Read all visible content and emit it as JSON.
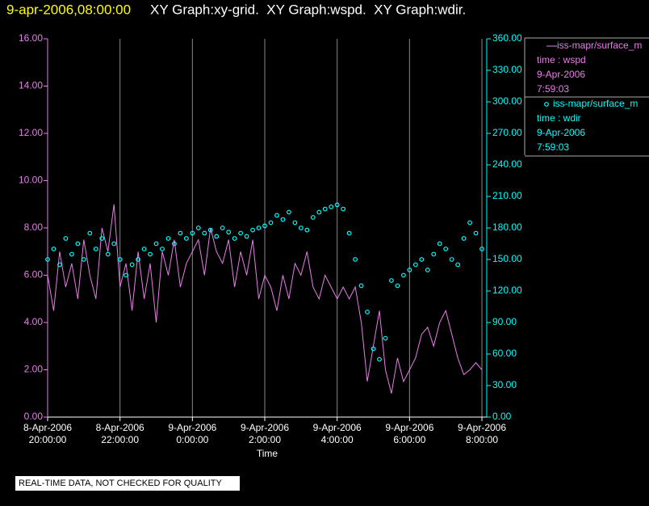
{
  "chart_data": {
    "type": "line",
    "title": "9-apr-2006,08:00:00",
    "subtitle": "XY Graph:xy-grid.  XY Graph:wspd.  XY Graph:wdir.",
    "xlabel": "Time",
    "footnote": "REAL-TIME DATA, NOT CHECKED FOR QUALITY",
    "grid": true,
    "x": [
      "2006-04-08 20:00:00",
      "2006-04-08 20:10:00",
      "2006-04-08 20:20:00",
      "2006-04-08 20:30:00",
      "2006-04-08 20:40:00",
      "2006-04-08 20:50:00",
      "2006-04-08 21:00:00",
      "2006-04-08 21:10:00",
      "2006-04-08 21:20:00",
      "2006-04-08 21:30:00",
      "2006-04-08 21:40:00",
      "2006-04-08 21:50:00",
      "2006-04-08 22:00:00",
      "2006-04-08 22:10:00",
      "2006-04-08 22:20:00",
      "2006-04-08 22:30:00",
      "2006-04-08 22:40:00",
      "2006-04-08 22:50:00",
      "2006-04-08 23:00:00",
      "2006-04-08 23:10:00",
      "2006-04-08 23:20:00",
      "2006-04-08 23:30:00",
      "2006-04-08 23:40:00",
      "2006-04-08 23:50:00",
      "2006-04-09 00:00:00",
      "2006-04-09 00:10:00",
      "2006-04-09 00:20:00",
      "2006-04-09 00:30:00",
      "2006-04-09 00:40:00",
      "2006-04-09 00:50:00",
      "2006-04-09 01:00:00",
      "2006-04-09 01:10:00",
      "2006-04-09 01:20:00",
      "2006-04-09 01:30:00",
      "2006-04-09 01:40:00",
      "2006-04-09 01:50:00",
      "2006-04-09 02:00:00",
      "2006-04-09 02:10:00",
      "2006-04-09 02:20:00",
      "2006-04-09 02:30:00",
      "2006-04-09 02:40:00",
      "2006-04-09 02:50:00",
      "2006-04-09 03:00:00",
      "2006-04-09 03:10:00",
      "2006-04-09 03:20:00",
      "2006-04-09 03:30:00",
      "2006-04-09 03:40:00",
      "2006-04-09 03:50:00",
      "2006-04-09 04:00:00",
      "2006-04-09 04:10:00",
      "2006-04-09 04:20:00",
      "2006-04-09 04:30:00",
      "2006-04-09 04:40:00",
      "2006-04-09 04:50:00",
      "2006-04-09 05:00:00",
      "2006-04-09 05:10:00",
      "2006-04-09 05:20:00",
      "2006-04-09 05:30:00",
      "2006-04-09 05:40:00",
      "2006-04-09 05:50:00",
      "2006-04-09 06:00:00",
      "2006-04-09 06:10:00",
      "2006-04-09 06:20:00",
      "2006-04-09 06:30:00",
      "2006-04-09 06:40:00",
      "2006-04-09 06:50:00",
      "2006-04-09 07:00:00",
      "2006-04-09 07:10:00",
      "2006-04-09 07:20:00",
      "2006-04-09 07:30:00",
      "2006-04-09 07:40:00",
      "2006-04-09 07:50:00",
      "2006-04-09 08:00:00"
    ],
    "xlim": [
      "2006-04-08 20:00:00",
      "2006-04-09 08:08:00"
    ],
    "xticks": [
      {
        "value": "2006-04-08 20:00:00",
        "label": [
          "8-Apr-2006",
          "20:00:00"
        ]
      },
      {
        "value": "2006-04-08 22:00:00",
        "label": [
          "8-Apr-2006",
          "22:00:00"
        ]
      },
      {
        "value": "2006-04-09 00:00:00",
        "label": [
          "9-Apr-2006",
          "0:00:00"
        ]
      },
      {
        "value": "2006-04-09 02:00:00",
        "label": [
          "9-Apr-2006",
          "2:00:00"
        ]
      },
      {
        "value": "2006-04-09 04:00:00",
        "label": [
          "9-Apr-2006",
          "4:00:00"
        ]
      },
      {
        "value": "2006-04-09 06:00:00",
        "label": [
          "9-Apr-2006",
          "6:00:00"
        ]
      },
      {
        "value": "2006-04-09 08:00:00",
        "label": [
          "9-Apr-2006",
          "8:00:00"
        ]
      }
    ],
    "ylim": [
      0,
      16
    ],
    "yticks": [
      {
        "value": 0,
        "label": "0.00"
      },
      {
        "value": 2,
        "label": "2.00"
      },
      {
        "value": 4,
        "label": "4.00"
      },
      {
        "value": 6,
        "label": "6.00"
      },
      {
        "value": 8,
        "label": "8.00"
      },
      {
        "value": 10,
        "label": "10.00"
      },
      {
        "value": 12,
        "label": "12.00"
      },
      {
        "value": 14,
        "label": "14.00"
      },
      {
        "value": 16,
        "label": "16.00"
      }
    ],
    "y2lim": [
      0,
      360
    ],
    "y2ticks": [
      {
        "value": 0,
        "label": "0.00"
      },
      {
        "value": 30,
        "label": "30.00"
      },
      {
        "value": 60,
        "label": "60.00"
      },
      {
        "value": 90,
        "label": "90.00"
      },
      {
        "value": 120,
        "label": "120.00"
      },
      {
        "value": 150,
        "label": "150.00"
      },
      {
        "value": 180,
        "label": "180.00"
      },
      {
        "value": 210,
        "label": "210.00"
      },
      {
        "value": 240,
        "label": "240.00"
      },
      {
        "value": 270,
        "label": "270.00"
      },
      {
        "value": 300,
        "label": "300.00"
      },
      {
        "value": 330,
        "label": "330.00"
      },
      {
        "value": 360,
        "label": "360.00"
      }
    ],
    "series": [
      {
        "name": "iss-mapr/surface_m",
        "label": "time : wspd",
        "date": "9-Apr-2006",
        "time": "7:59:03",
        "color": "#e87ee8",
        "style": "line",
        "axis": "y",
        "values": [
          6.0,
          4.5,
          7.0,
          5.5,
          6.5,
          5.0,
          7.5,
          6.0,
          5.0,
          8.0,
          7.0,
          9.0,
          5.5,
          6.5,
          4.5,
          7.0,
          5.0,
          6.5,
          4.0,
          7.0,
          6.0,
          7.5,
          5.5,
          6.5,
          7.0,
          7.5,
          6.0,
          8.0,
          7.0,
          6.5,
          7.5,
          5.5,
          7.0,
          6.0,
          7.5,
          5.0,
          6.0,
          5.5,
          4.5,
          6.0,
          5.0,
          6.5,
          6.0,
          7.0,
          5.5,
          5.0,
          6.0,
          5.5,
          5.0,
          5.5,
          5.0,
          5.5,
          4.0,
          1.5,
          3.0,
          4.5,
          2.0,
          1.0,
          2.5,
          1.5,
          2.0,
          2.5,
          3.5,
          3.8,
          3.0,
          4.0,
          4.5,
          3.5,
          2.5,
          1.8,
          2.0,
          2.3,
          2.0
        ]
      },
      {
        "name": "iss-mapr/surface_m",
        "label": "time : wdir",
        "date": "9-Apr-2006",
        "time": "7:59:03",
        "color": "#00ffff",
        "style": "markers",
        "axis": "y2",
        "values": [
          150,
          160,
          145,
          170,
          155,
          165,
          150,
          175,
          160,
          170,
          155,
          165,
          150,
          135,
          145,
          150,
          160,
          155,
          165,
          160,
          170,
          165,
          175,
          170,
          175,
          180,
          175,
          178,
          172,
          180,
          176,
          170,
          175,
          172,
          178,
          180,
          182,
          185,
          192,
          188,
          195,
          185,
          180,
          178,
          190,
          195,
          198,
          200,
          202,
          198,
          175,
          150,
          125,
          100,
          65,
          55,
          75,
          130,
          125,
          135,
          140,
          145,
          150,
          140,
          155,
          165,
          160,
          150,
          145,
          170,
          185,
          175,
          160
        ]
      }
    ]
  }
}
